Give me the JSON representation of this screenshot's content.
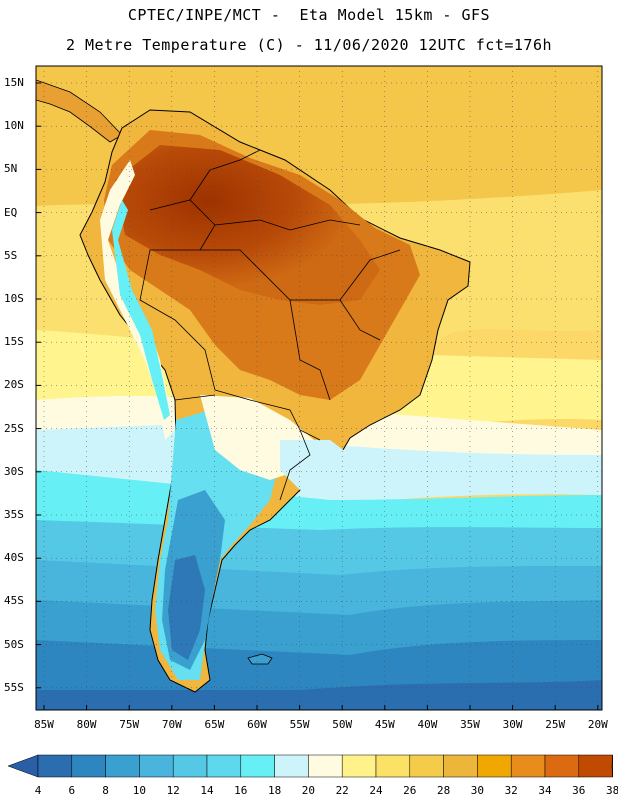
{
  "header": {
    "title_line1": "CPTEC/INPE/MCT -  Eta Model 15km - GFS",
    "title_line2": "2 Metre Temperature (C) - 11/06/2020 12UTC fct=176h"
  },
  "map": {
    "lat_labels": [
      "15N",
      "10N",
      "5N",
      "EQ",
      "5S",
      "10S",
      "15S",
      "20S",
      "25S",
      "30S",
      "35S",
      "40S",
      "45S",
      "50S",
      "55S"
    ],
    "lon_labels": [
      "85W",
      "80W",
      "75W",
      "70W",
      "65W",
      "60W",
      "55W",
      "50W",
      "45W",
      "40W",
      "35W",
      "30W",
      "25W",
      "20W"
    ]
  },
  "colorbar": {
    "labels": [
      "4",
      "6",
      "8",
      "10",
      "12",
      "14",
      "16",
      "18",
      "20",
      "22",
      "24",
      "26",
      "28",
      "30",
      "32",
      "34",
      "36",
      "38"
    ],
    "colors": [
      "#2b6eb0",
      "#2e86c1",
      "#3aa0d0",
      "#49b5dd",
      "#55c8e6",
      "#5ed8ec",
      "#66f0f5",
      "#cdf4fa",
      "#fffbe0",
      "#fff28a",
      "#fbe166",
      "#f4cc4a",
      "#ecb63a",
      "#f0a800",
      "#e88c1c",
      "#dc6a10",
      "#c04a00"
    ],
    "low_arrow_color": "#2b5fa5",
    "high_arrow_color": "#a83a00"
  }
}
